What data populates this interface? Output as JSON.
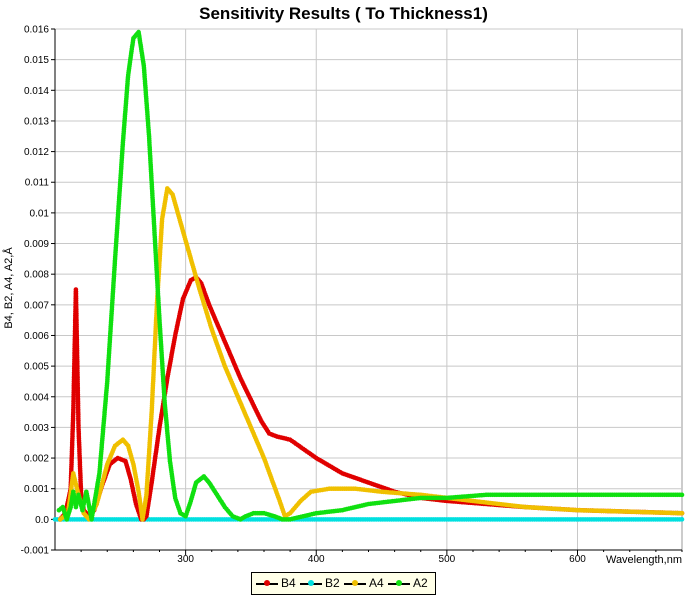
{
  "chart_data": {
    "type": "line",
    "title": "Sensitivity Results ( To Thickness1)",
    "xlabel": "Wavelength,nm",
    "ylabel": "B4, B2, A4, A2,Å",
    "xlim": [
      200,
      680
    ],
    "ylim": [
      -0.001,
      0.016
    ],
    "x_ticks": [
      300,
      400,
      500,
      600
    ],
    "y_ticks": [
      -0.001,
      0.0,
      0.001,
      0.002,
      0.003,
      0.004,
      0.005,
      0.006,
      0.007,
      0.008,
      0.009,
      0.01,
      0.011,
      0.012,
      0.013,
      0.014,
      0.015,
      0.016
    ],
    "y_tick_labels": [
      "-0.001",
      "0.0",
      "0.001",
      "0.002",
      "0.003",
      "0.004",
      "0.005",
      "0.006",
      "0.007",
      "0.008",
      "0.009",
      "0.01",
      "0.011",
      "0.012",
      "0.013",
      "0.014",
      "0.015",
      "0.016"
    ],
    "grid": true,
    "legend_position": "bottom-center",
    "series": [
      {
        "name": "B4",
        "color": "#e00000",
        "x": [
          204,
          208,
          212,
          214,
          216,
          218,
          220,
          222,
          226,
          230,
          236,
          242,
          248,
          254,
          258,
          262,
          266,
          268,
          270,
          274,
          280,
          286,
          292,
          298,
          304,
          308,
          312,
          318,
          326,
          334,
          342,
          350,
          358,
          364,
          370,
          380,
          390,
          400,
          420,
          440,
          460,
          480,
          500,
          530,
          560,
          600,
          640,
          680
        ],
        "y": [
          0.0,
          0.0002,
          0.001,
          0.0035,
          0.0075,
          0.003,
          0.0008,
          0.0003,
          0.0001,
          0.0003,
          0.0011,
          0.0018,
          0.002,
          0.0019,
          0.0013,
          0.0005,
          0.0,
          0.0,
          0.0001,
          0.0012,
          0.003,
          0.0046,
          0.006,
          0.0072,
          0.0078,
          0.0079,
          0.0077,
          0.007,
          0.0062,
          0.0054,
          0.0046,
          0.0039,
          0.0032,
          0.0028,
          0.0027,
          0.0026,
          0.0023,
          0.002,
          0.0015,
          0.0012,
          0.0009,
          0.0007,
          0.0006,
          0.0005,
          0.0004,
          0.0003,
          0.00025,
          0.0002
        ]
      },
      {
        "name": "B2",
        "color": "#00e0e0",
        "x": [
          200,
          680
        ],
        "y": [
          0.0,
          0.0
        ]
      },
      {
        "name": "A4",
        "color": "#f0c000",
        "x": [
          204,
          210,
          214,
          218,
          222,
          226,
          232,
          240,
          246,
          252,
          256,
          260,
          264,
          267,
          270,
          274,
          278,
          282,
          286,
          290,
          296,
          302,
          310,
          320,
          330,
          340,
          350,
          360,
          366,
          372,
          376,
          380,
          388,
          396,
          410,
          430,
          450,
          480,
          520,
          560,
          600,
          640,
          680
        ],
        "y": [
          0.0,
          0.0002,
          0.0015,
          0.0008,
          0.0002,
          0.0,
          0.0005,
          0.0018,
          0.0024,
          0.0026,
          0.0024,
          0.0018,
          0.0009,
          0.0,
          0.0008,
          0.0035,
          0.007,
          0.0098,
          0.0108,
          0.0106,
          0.0097,
          0.0088,
          0.0076,
          0.0062,
          0.005,
          0.004,
          0.003,
          0.002,
          0.0013,
          0.0006,
          0.0001,
          0.0002,
          0.0006,
          0.0009,
          0.001,
          0.001,
          0.0009,
          0.0008,
          0.0006,
          0.0004,
          0.0003,
          0.00025,
          0.0002
        ]
      },
      {
        "name": "A2",
        "color": "#10e010",
        "x": [
          203,
          206,
          209,
          212,
          214,
          216,
          218,
          221,
          224,
          228,
          234,
          240,
          246,
          252,
          256,
          260,
          264,
          268,
          272,
          276,
          280,
          284,
          288,
          292,
          296,
          300,
          304,
          308,
          314,
          318,
          324,
          330,
          336,
          342,
          346,
          352,
          360,
          368,
          374,
          380,
          390,
          400,
          420,
          440,
          460,
          480,
          500,
          530,
          560,
          600,
          640,
          680
        ],
        "y": [
          0.0003,
          0.0004,
          0.0,
          0.0004,
          0.0009,
          0.0004,
          0.0008,
          0.0003,
          0.0009,
          0.0,
          0.0015,
          0.0045,
          0.0085,
          0.0123,
          0.0145,
          0.0157,
          0.0159,
          0.0148,
          0.0125,
          0.0095,
          0.0065,
          0.0038,
          0.0019,
          0.0007,
          0.0002,
          0.0001,
          0.0006,
          0.0012,
          0.0014,
          0.0012,
          0.0008,
          0.0004,
          0.0001,
          0.0,
          0.0001,
          0.0002,
          0.0002,
          0.0001,
          0.0,
          0.0,
          0.0001,
          0.0002,
          0.0003,
          0.0005,
          0.0006,
          0.0007,
          0.0007,
          0.0008,
          0.0008,
          0.0008,
          0.0008,
          0.0008
        ]
      }
    ]
  }
}
